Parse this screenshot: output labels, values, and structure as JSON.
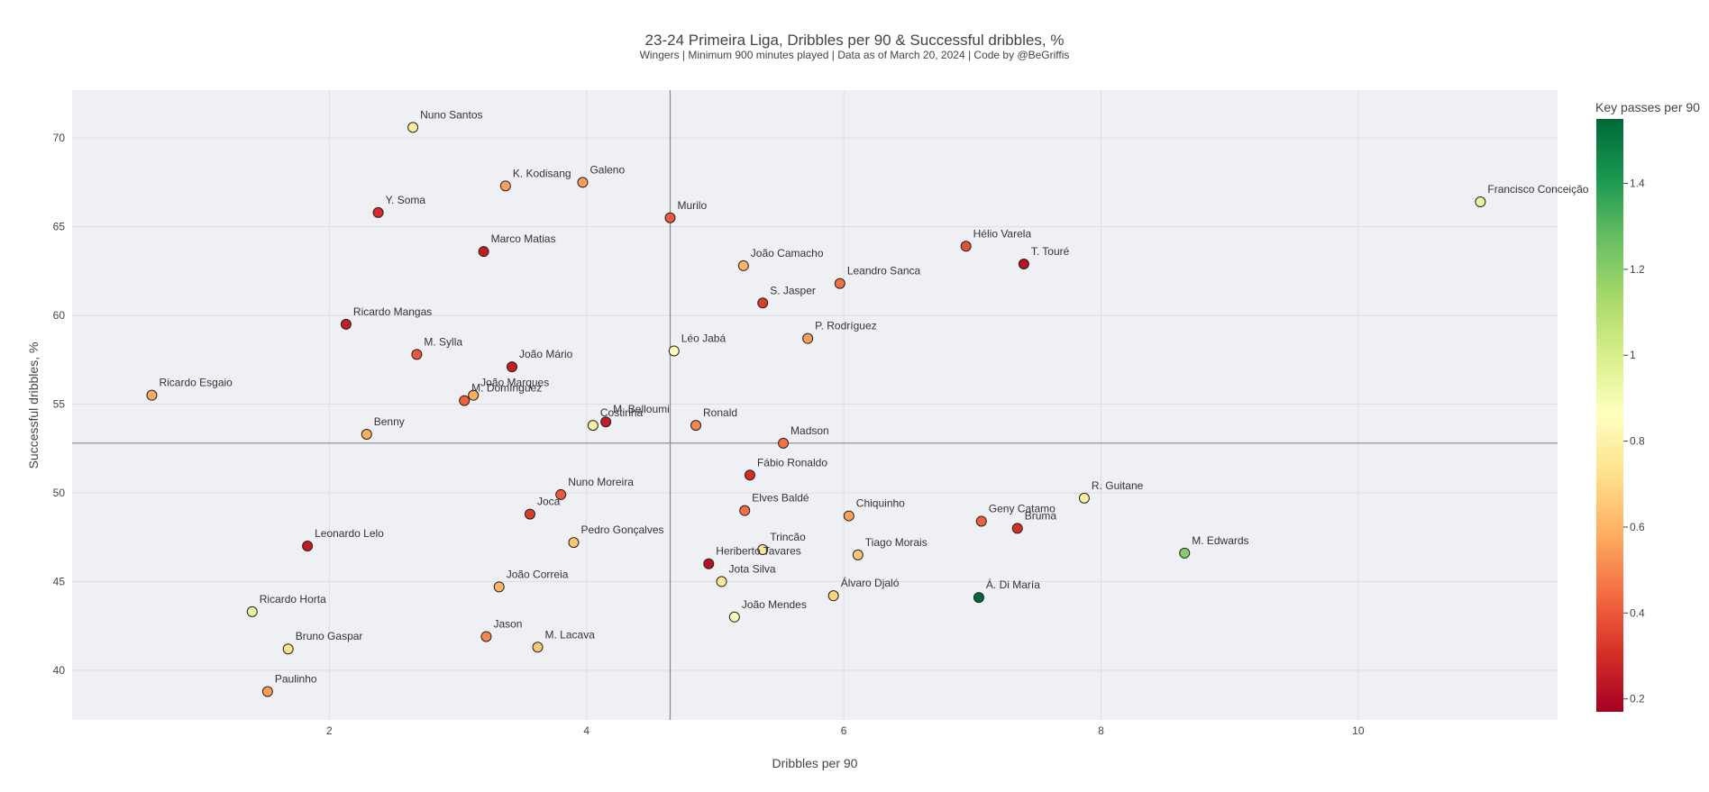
{
  "chart_data": {
    "type": "scatter",
    "title": "23-24 Primeira Liga, Dribbles per 90 & Successful dribbles, %",
    "subtitle": "Wingers | Minimum 900 minutes played | Data as of March 20, 2024 | Code by @BeGriffis",
    "xlabel": "Dribbles per 90",
    "ylabel": "Successful dribbles, %",
    "xlim": [
      0.0,
      11.55
    ],
    "ylim": [
      37.2,
      72.7
    ],
    "x_ticks": [
      2,
      4,
      6,
      8,
      10
    ],
    "y_ticks": [
      40,
      45,
      50,
      55,
      60,
      65,
      70
    ],
    "grid": true,
    "reference_lines": {
      "x": 4.65,
      "y": 52.8
    },
    "colorbar": {
      "title": "Key passes per 90",
      "range": [
        0.17,
        1.55
      ],
      "ticks": [
        0.2,
        0.4,
        0.6,
        0.8,
        1,
        1.2,
        1.4
      ],
      "colorscale": "RdYlGn",
      "placement": "right"
    },
    "points": [
      {
        "name": "Nuno Santos",
        "x": 2.65,
        "y": 70.6,
        "c": 0.78
      },
      {
        "name": "K. Kodisang",
        "x": 3.37,
        "y": 67.3,
        "c": 0.55
      },
      {
        "name": "Galeno",
        "x": 3.97,
        "y": 67.5,
        "c": 0.55
      },
      {
        "name": "Y. Soma",
        "x": 2.38,
        "y": 65.8,
        "c": 0.3
      },
      {
        "name": "Murilo",
        "x": 4.65,
        "y": 65.5,
        "c": 0.4
      },
      {
        "name": "Francisco Conceição",
        "x": 10.95,
        "y": 66.4,
        "c": 0.95
      },
      {
        "name": "Marco Matias",
        "x": 3.2,
        "y": 63.6,
        "c": 0.25
      },
      {
        "name": "Hélio Varela",
        "x": 6.95,
        "y": 63.9,
        "c": 0.38
      },
      {
        "name": "T. Touré",
        "x": 7.4,
        "y": 62.9,
        "c": 0.22
      },
      {
        "name": "João Camacho",
        "x": 5.22,
        "y": 62.8,
        "c": 0.6
      },
      {
        "name": "Leandro Sanca",
        "x": 5.97,
        "y": 61.8,
        "c": 0.45
      },
      {
        "name": "S. Jasper",
        "x": 5.37,
        "y": 60.7,
        "c": 0.33
      },
      {
        "name": "Ricardo Mangas",
        "x": 2.13,
        "y": 59.5,
        "c": 0.25
      },
      {
        "name": "P. Rodríguez",
        "x": 5.72,
        "y": 58.7,
        "c": 0.55
      },
      {
        "name": "Léo Jabá",
        "x": 4.68,
        "y": 58.0,
        "c": 0.85
      },
      {
        "name": "M. Sylla",
        "x": 2.68,
        "y": 57.8,
        "c": 0.4
      },
      {
        "name": "João Mário",
        "x": 3.42,
        "y": 57.1,
        "c": 0.25
      },
      {
        "name": "Ricardo Esgaio",
        "x": 0.62,
        "y": 55.5,
        "c": 0.58
      },
      {
        "name": "João Marques",
        "x": 3.12,
        "y": 55.5,
        "c": 0.58
      },
      {
        "name": "M. Domínguez",
        "x": 3.05,
        "y": 55.2,
        "c": 0.42
      },
      {
        "name": "Benny",
        "x": 2.29,
        "y": 53.3,
        "c": 0.58
      },
      {
        "name": "Costinha",
        "x": 4.05,
        "y": 53.8,
        "c": 0.78
      },
      {
        "name": "M. Belloumi",
        "x": 4.15,
        "y": 54.0,
        "c": 0.25
      },
      {
        "name": "Ronald",
        "x": 4.85,
        "y": 53.8,
        "c": 0.5
      },
      {
        "name": "Madson",
        "x": 5.53,
        "y": 52.8,
        "c": 0.45
      },
      {
        "name": "Fábio Ronaldo",
        "x": 5.27,
        "y": 51.0,
        "c": 0.3
      },
      {
        "name": "R. Guitane",
        "x": 7.87,
        "y": 49.7,
        "c": 0.78
      },
      {
        "name": "Nuno Moreira",
        "x": 3.8,
        "y": 49.9,
        "c": 0.4
      },
      {
        "name": "Joca",
        "x": 3.56,
        "y": 48.8,
        "c": 0.33
      },
      {
        "name": "Elves Baldé",
        "x": 5.23,
        "y": 49.0,
        "c": 0.45
      },
      {
        "name": "Chiquinho",
        "x": 6.04,
        "y": 48.7,
        "c": 0.55
      },
      {
        "name": "Geny Catamo",
        "x": 7.07,
        "y": 48.4,
        "c": 0.42
      },
      {
        "name": "Bruma",
        "x": 7.35,
        "y": 48.0,
        "c": 0.3
      },
      {
        "name": "Leonardo Lelo",
        "x": 1.83,
        "y": 47.0,
        "c": 0.25
      },
      {
        "name": "Pedro Gonçalves",
        "x": 3.9,
        "y": 47.2,
        "c": 0.65
      },
      {
        "name": "Trincão",
        "x": 5.37,
        "y": 46.8,
        "c": 0.75
      },
      {
        "name": "M. Edwards",
        "x": 8.65,
        "y": 46.6,
        "c": 1.2
      },
      {
        "name": "Tiago Morais",
        "x": 6.11,
        "y": 46.5,
        "c": 0.65
      },
      {
        "name": "Heriberto Tavares",
        "x": 4.95,
        "y": 46.0,
        "c": 0.22
      },
      {
        "name": "Jota Silva",
        "x": 5.05,
        "y": 45.0,
        "c": 0.75
      },
      {
        "name": "João Correia",
        "x": 3.32,
        "y": 44.7,
        "c": 0.6
      },
      {
        "name": "Álvaro Djaló",
        "x": 5.92,
        "y": 44.2,
        "c": 0.68
      },
      {
        "name": "Á. Di María",
        "x": 7.05,
        "y": 44.1,
        "c": 1.55
      },
      {
        "name": "Ricardo Horta",
        "x": 1.4,
        "y": 43.3,
        "c": 0.95
      },
      {
        "name": "João Mendes",
        "x": 5.15,
        "y": 43.0,
        "c": 0.88
      },
      {
        "name": "Jason",
        "x": 3.22,
        "y": 41.9,
        "c": 0.5
      },
      {
        "name": "M. Lacava",
        "x": 3.62,
        "y": 41.3,
        "c": 0.65
      },
      {
        "name": "Bruno Gaspar",
        "x": 1.68,
        "y": 41.2,
        "c": 0.72
      },
      {
        "name": "Paulinho",
        "x": 1.52,
        "y": 38.8,
        "c": 0.55
      }
    ]
  }
}
